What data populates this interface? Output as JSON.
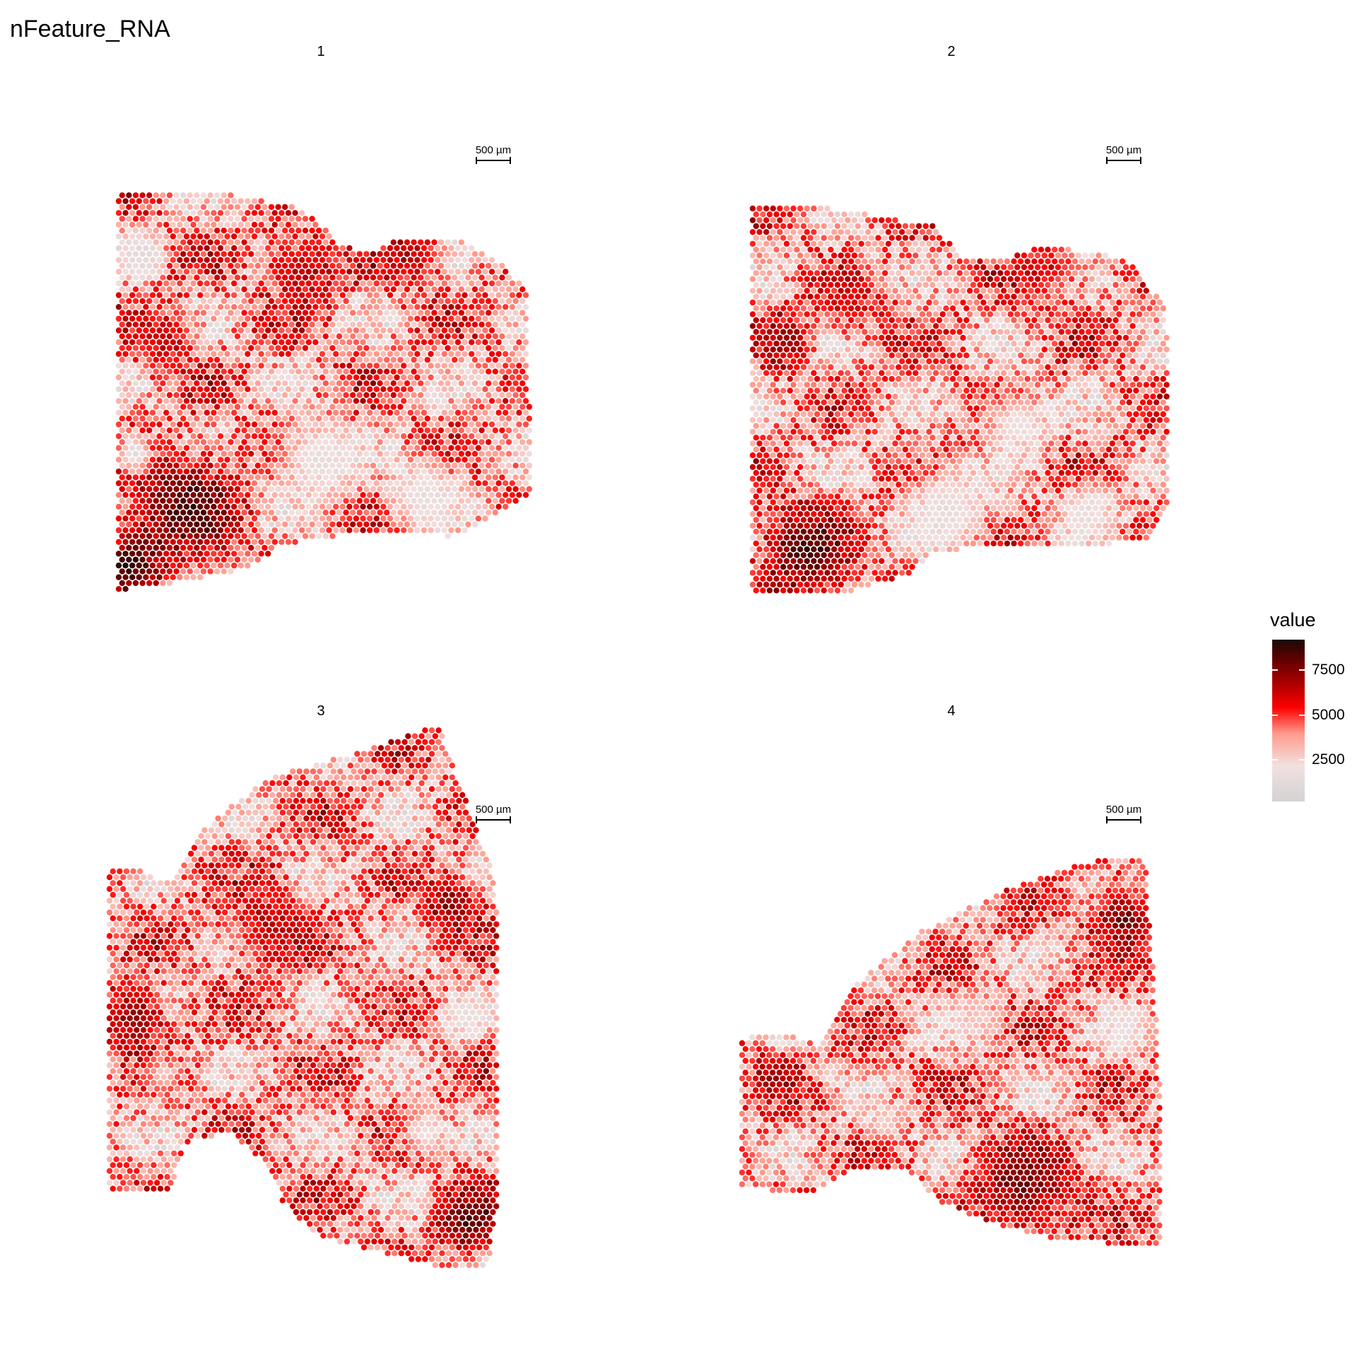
{
  "title": "nFeature_RNA",
  "legend": {
    "title": "value",
    "ticks": [
      {
        "value": 2500,
        "label": "2500"
      },
      {
        "value": 5000,
        "label": "5000"
      },
      {
        "value": 7500,
        "label": "7500"
      }
    ],
    "range": [
      300,
      9300
    ],
    "colors": [
      "#d3d3d3",
      "#f2e0e0",
      "#ff9a8c",
      "#ff0000",
      "#b00000",
      "#6a0000",
      "#1a0a05"
    ]
  },
  "scalebar_label": "500 µm",
  "chart_data": {
    "type": "scatter",
    "description_free": true,
    "value_name": "value",
    "value_range": [
      300,
      9300
    ],
    "panels": [
      {
        "label": "1"
      },
      {
        "label": "2"
      },
      {
        "label": "3"
      },
      {
        "label": "4"
      }
    ]
  }
}
